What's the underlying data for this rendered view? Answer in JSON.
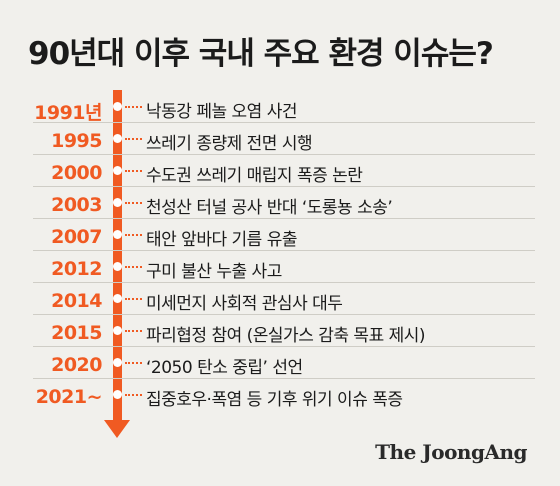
{
  "title": "90년대 이후 국내 주요 환경 이슈는?",
  "timeline": [
    {
      "year": "1991년",
      "event": "낙동강 페놀 오염 사건"
    },
    {
      "year": "1995",
      "event": "쓰레기 종량제 전면 시행"
    },
    {
      "year": "2000",
      "event": "수도권 쓰레기 매립지 폭증 논란"
    },
    {
      "year": "2003",
      "event": "천성산 터널 공사 반대 ‘도롱뇽 소송’"
    },
    {
      "year": "2007",
      "event": "태안 앞바다 기름 유출"
    },
    {
      "year": "2012",
      "event": "구미 불산 누출 사고"
    },
    {
      "year": "2014",
      "event": "미세먼지 사회적 관심사 대두"
    },
    {
      "year": "2015",
      "event": "파리협정 참여 (온실가스 감축 목표 제시)"
    },
    {
      "year": "2020",
      "event": "‘2050 탄소 중립’ 선언"
    },
    {
      "year": "2021~",
      "event": "집중호우·폭염 등 기후 위기 이슈 폭증"
    }
  ],
  "source": "The JoongAng",
  "colors": {
    "accent": "#f05a22",
    "background": "#f1f0ec",
    "text": "#1b1b1b"
  }
}
